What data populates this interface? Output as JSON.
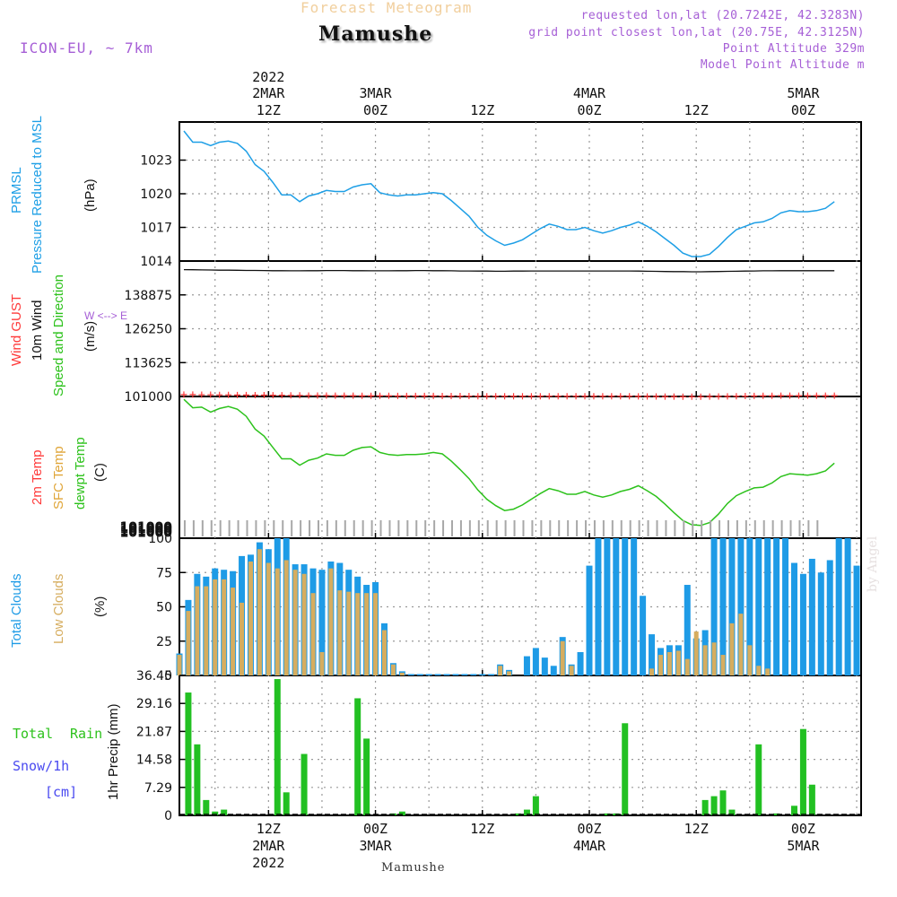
{
  "header": {
    "subtitle": "Forecast Meteogram",
    "title": "Mamushe",
    "model": "ICON-EU, ~ 7km",
    "requested": "requested lon,lat (20.7242E, 42.3283N)",
    "grid_point": "grid point closest lon,lat (20.75E, 42.3125N)",
    "point_altitude": "Point Altitude 329m",
    "model_altitude": "Model Point Altitude m"
  },
  "footer": {
    "location": "Mamushe"
  },
  "watermark": "by Angel",
  "colors": {
    "pressure": "#1e9fe6",
    "gust": "#ff3a3a",
    "wind": "#111111",
    "temp": "#2dc21c",
    "total_cloud": "#1e9be6",
    "low_cloud": "#d6ad5f",
    "rain": "#22c022",
    "snow_label": "#4a4af0",
    "grid": "#999999",
    "purple": "#a65fd6"
  },
  "panel_labels": {
    "pressure": [
      "PRMSL",
      "Pressure Reduced to MSL",
      "(hPa)"
    ],
    "wind": [
      "Wind GUST",
      "10m Wind",
      "Speed and Direction",
      "(m/s)"
    ],
    "compass": "W <--> E",
    "temp": [
      "2m Temp",
      "SFC Temp",
      "dewpt Temp",
      "(C)"
    ],
    "clouds": [
      "Total Clouds",
      "Low Clouds",
      "(%)"
    ],
    "precip": [
      "Total",
      "Rain",
      "Snow/1h",
      "[cm]",
      "1hr Precip (mm)"
    ]
  },
  "time_axis": {
    "top_year": "2022",
    "bottom_year": "2022",
    "ticks": [
      {
        "hour": 26,
        "top": "2MAR",
        "label": "12Z",
        "date": "2MAR"
      },
      {
        "hour": 38,
        "top": "3MAR",
        "label": "00Z",
        "date": "3MAR"
      },
      {
        "hour": 50,
        "top": "",
        "label": "12Z",
        "date": ""
      },
      {
        "hour": 62,
        "top": "4MAR",
        "label": "00Z",
        "date": "4MAR"
      },
      {
        "hour": 74,
        "top": "",
        "label": "12Z",
        "date": ""
      },
      {
        "hour": 86,
        "top": "5MAR",
        "label": "00Z",
        "date": "5MAR"
      }
    ],
    "start_hour": 16,
    "end_hour": 92.5
  },
  "chart_data": [
    {
      "type": "line",
      "name": "pressure",
      "title": "PRMSL Pressure Reduced to MSL",
      "ylabel": "(hPa)",
      "ylim": [
        1014,
        1026.4
      ],
      "yticks": [
        1014,
        1017,
        1020,
        1023
      ],
      "x_start_hour": 16.5,
      "x_step_hours": 1,
      "values": [
        1025.6,
        1024.6,
        1024.6,
        1024.3,
        1024.6,
        1024.7,
        1024.5,
        1023.8,
        1022.6,
        1022.0,
        1021.0,
        1019.9,
        1019.9,
        1019.3,
        1019.8,
        1020.0,
        1020.3,
        1020.2,
        1020.2,
        1020.6,
        1020.8,
        1020.9,
        1020.1,
        1019.9,
        1019.8,
        1019.9,
        1019.9,
        1020.0,
        1020.1,
        1020.0,
        1019.4,
        1018.7,
        1018.0,
        1017.0,
        1016.3,
        1015.8,
        1015.4,
        1015.6,
        1015.9,
        1016.4,
        1016.9,
        1017.3,
        1017.1,
        1016.8,
        1016.8,
        1017.0,
        1016.7,
        1016.5,
        1016.7,
        1017.0,
        1017.2,
        1017.5,
        1017.1,
        1016.6,
        1016.0,
        1015.4,
        1014.7,
        1014.4,
        1014.4,
        1014.6,
        1015.3,
        1016.1,
        1016.8,
        1017.1,
        1017.4,
        1017.5,
        1017.8,
        1018.3,
        1018.5,
        1018.4,
        1018.4,
        1018.5,
        1018.7,
        1019.3
      ]
    },
    {
      "type": "line",
      "name": "wind",
      "title": "Wind GUST / 10m Wind Speed and Direction",
      "ylabel": "(m/s)",
      "ylim": [
        101000,
        151500
      ],
      "yticks": [
        101000,
        113625,
        126250,
        138875
      ],
      "x_start_hour": 16.5,
      "x_step_hours": 1,
      "wind_values": [
        148300,
        148250,
        148200,
        148150,
        148100,
        148100,
        148050,
        148000,
        148000,
        147950,
        147900,
        147900,
        147850,
        147850,
        147900,
        147900,
        147950,
        147950,
        147950,
        147900,
        147900,
        147850,
        147850,
        147850,
        147900,
        147900,
        147950,
        147950,
        147900,
        147900,
        147850,
        147800,
        147800,
        147750,
        147750,
        147700,
        147700,
        147750,
        147750,
        147800,
        147800,
        147800,
        147800,
        147800,
        147800,
        147800,
        147800,
        147800,
        147800,
        147800,
        147800,
        147750,
        147700,
        147650,
        147600,
        147550,
        147550,
        147500,
        147500,
        147550,
        147600,
        147650,
        147700,
        147750,
        147800,
        147850,
        147850,
        147900,
        147900,
        147900,
        147900,
        147900,
        147900,
        147900
      ],
      "gust_values": [
        101700,
        101700,
        101650,
        101650,
        101600,
        101600,
        101550,
        101550,
        101500,
        101500,
        101450,
        101450,
        101400,
        101400,
        101350,
        101350,
        101350,
        101300,
        101300,
        101300,
        101250,
        101250,
        101250,
        101250,
        101200,
        101200,
        101200,
        101200,
        101200,
        101150,
        101150,
        101150,
        101150,
        101100,
        101100,
        101100,
        101100,
        101100,
        101100,
        101100,
        101100,
        101100,
        101100,
        101100,
        101100,
        101100,
        101100,
        101100,
        101100,
        101100,
        101100,
        101050,
        101000,
        101000,
        100950,
        100950,
        100900,
        100900,
        100900,
        100950,
        101000,
        101050,
        101100,
        101150,
        101200,
        101250,
        101250,
        101300,
        101300,
        101300,
        101300,
        101300,
        101300,
        101300
      ]
    },
    {
      "type": "line",
      "name": "temperature",
      "title": "2m Temp / SFC Temp / dewpt Temp",
      "ylabel": "(C)",
      "overlapped_tick_text": "101000",
      "x_start_hour": 16.5,
      "x_step_hours": 1,
      "ylim": [
        0,
        10
      ],
      "values": [
        9.8,
        9.2,
        9.25,
        8.9,
        9.15,
        9.3,
        9.1,
        8.6,
        7.7,
        7.2,
        6.4,
        5.6,
        5.6,
        5.15,
        5.5,
        5.65,
        5.95,
        5.85,
        5.85,
        6.2,
        6.4,
        6.45,
        6.05,
        5.9,
        5.85,
        5.9,
        5.9,
        5.95,
        6.05,
        5.95,
        5.45,
        4.85,
        4.2,
        3.4,
        2.75,
        2.3,
        1.95,
        2.05,
        2.35,
        2.75,
        3.15,
        3.5,
        3.35,
        3.1,
        3.1,
        3.3,
        3.05,
        2.9,
        3.05,
        3.3,
        3.45,
        3.7,
        3.35,
        2.95,
        2.4,
        1.8,
        1.25,
        0.95,
        0.9,
        1.1,
        1.7,
        2.45,
        3.0,
        3.3,
        3.55,
        3.6,
        3.9,
        4.35,
        4.55,
        4.5,
        4.45,
        4.55,
        4.75,
        5.3
      ]
    },
    {
      "type": "bar",
      "name": "clouds",
      "title": "Total Clouds / Low Clouds",
      "ylabel": "(%)",
      "ylim": [
        0,
        100
      ],
      "yticks": [
        0,
        25,
        50,
        75,
        100
      ],
      "x_start_hour": 16,
      "x_step_hours": 1,
      "series": [
        {
          "name": "Total Clouds",
          "values": [
            16,
            55,
            74,
            72,
            78,
            77,
            76,
            87,
            88,
            97,
            92,
            100,
            100,
            81,
            81,
            78,
            77,
            83,
            82,
            77,
            72,
            66,
            68,
            38,
            9,
            3,
            1,
            1,
            1,
            1,
            1,
            1,
            1,
            1,
            1,
            1,
            8,
            4,
            0,
            14,
            20,
            13,
            7,
            28,
            8,
            17,
            80,
            100,
            100,
            100,
            100,
            100,
            58,
            30,
            20,
            22,
            22,
            66,
            27,
            33,
            100,
            100,
            100,
            100,
            100,
            100,
            100,
            100,
            100,
            82,
            74,
            85,
            75,
            84,
            100,
            100,
            80
          ]
        },
        {
          "name": "Low Clouds",
          "values": [
            15,
            47,
            65,
            65,
            70,
            70,
            64,
            53,
            83,
            92,
            82,
            78,
            84,
            77,
            74,
            60,
            17,
            78,
            62,
            61,
            60,
            60,
            60,
            33,
            8,
            2,
            0,
            0,
            0,
            0,
            0,
            0,
            0,
            0,
            0,
            0,
            7,
            3,
            0,
            0,
            0,
            0,
            0,
            25,
            7,
            0,
            0,
            0,
            0,
            0,
            0,
            0,
            0,
            5,
            15,
            17,
            18,
            12,
            32,
            22,
            24,
            15,
            38,
            45,
            22,
            7,
            5,
            0,
            0,
            0,
            0,
            0,
            0,
            0,
            0,
            0,
            0
          ]
        }
      ]
    },
    {
      "type": "bar",
      "name": "precipitation",
      "title": "Total Rain / Snow/1h",
      "ylabel": "1hr Precip (mm)",
      "ylim": [
        0,
        36.45
      ],
      "yticks": [
        0,
        7.29,
        14.58,
        21.87,
        29.16,
        36.45
      ],
      "x_start_hour": 17,
      "x_step_hours": 1,
      "series": [
        {
          "name": "Total Rain",
          "values": [
            32,
            18.5,
            4,
            1,
            1.5,
            0,
            0,
            0,
            0,
            0,
            35.5,
            6,
            0,
            16,
            0,
            0,
            0,
            0,
            0,
            30.5,
            20,
            0,
            0,
            0.5,
            1,
            0,
            0,
            0,
            0,
            0,
            0,
            0,
            0,
            0,
            0,
            0,
            0,
            0.5,
            1.5,
            5,
            0,
            0,
            0,
            0,
            0,
            0,
            0,
            0.5,
            0.5,
            24,
            0,
            0,
            0,
            0,
            0,
            0,
            0,
            0,
            4,
            5,
            6.5,
            1.5,
            0,
            0,
            18.5,
            0,
            0.5,
            0,
            2.5,
            22.5,
            8,
            0,
            0,
            0,
            0,
            0
          ]
        }
      ]
    }
  ]
}
